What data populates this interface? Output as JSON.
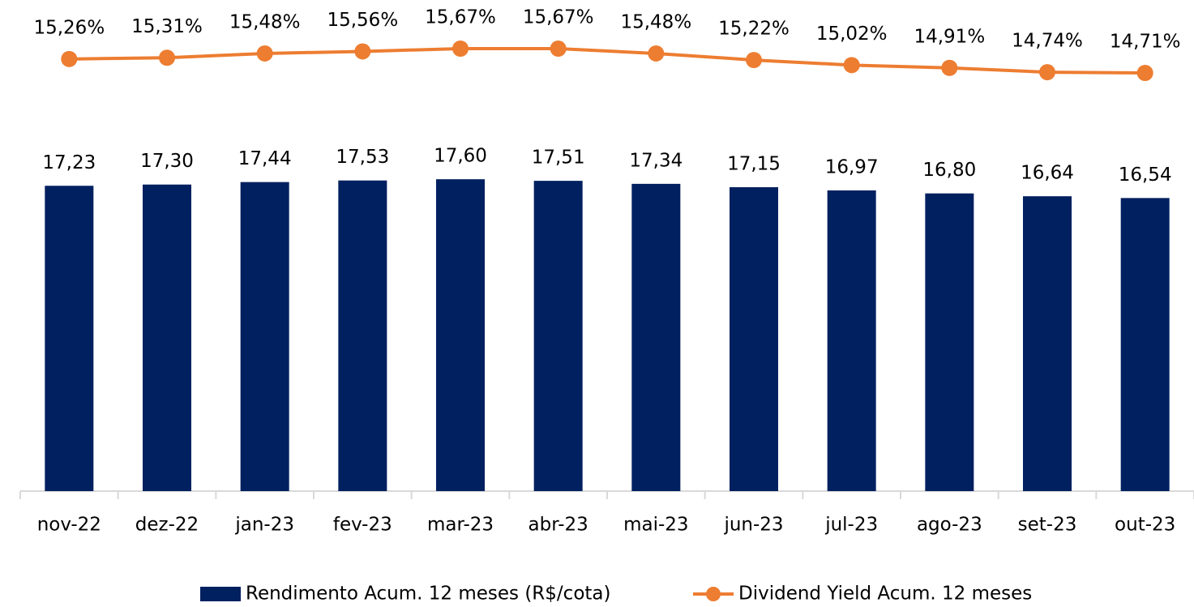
{
  "chart_data": {
    "type": "bar",
    "categories": [
      "nov-22",
      "dez-22",
      "jan-23",
      "fev-23",
      "mar-23",
      "abr-23",
      "mai-23",
      "jun-23",
      "jul-23",
      "ago-23",
      "set-23",
      "out-23"
    ],
    "series": [
      {
        "name": "Rendimento Acum. 12 meses (R$/cota)",
        "type": "bar",
        "color": "#002060",
        "values": [
          17.23,
          17.3,
          17.44,
          17.53,
          17.6,
          17.51,
          17.34,
          17.15,
          16.97,
          16.8,
          16.64,
          16.54
        ],
        "value_labels": [
          "17,23",
          "17,30",
          "17,44",
          "17,53",
          "17,60",
          "17,51",
          "17,34",
          "17,15",
          "16,97",
          "16,80",
          "16,64",
          "16,54"
        ]
      },
      {
        "name": "Dividend Yield Acum. 12 meses",
        "type": "line",
        "axis": "y2",
        "color": "#ed7d31",
        "values": [
          15.26,
          15.31,
          15.48,
          15.56,
          15.67,
          15.67,
          15.48,
          15.22,
          15.02,
          14.91,
          14.74,
          14.71
        ],
        "value_labels": [
          "15,26%",
          "15,31%",
          "15,48%",
          "15,56%",
          "15,67%",
          "15,67%",
          "15,48%",
          "15,22%",
          "15,02%",
          "14,91%",
          "14,74%",
          "14,71%"
        ]
      }
    ],
    "ylim": [
      0,
      26.8
    ],
    "y2lim": [
      -1.8,
      16.95
    ],
    "legend": "bottom"
  }
}
